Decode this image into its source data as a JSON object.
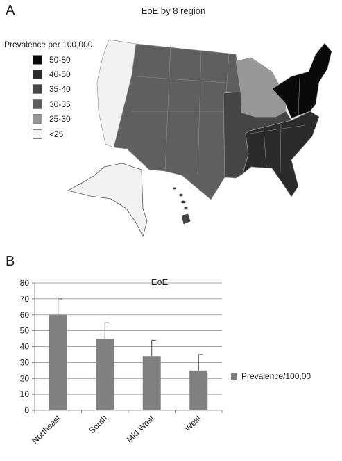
{
  "panel_a": {
    "letter": "A",
    "title": "EoE by 8 region",
    "legend_title": "Prevalence per 100,000",
    "legend": [
      {
        "label": "50-80",
        "color": "#0a0a0a"
      },
      {
        "label": "40-50",
        "color": "#2b2b2b"
      },
      {
        "label": "35-40",
        "color": "#454545"
      },
      {
        "label": "30-35",
        "color": "#5f5f5f"
      },
      {
        "label": "25-30",
        "color": "#979797"
      },
      {
        "label": "<25",
        "color": "#f2f2f2"
      }
    ]
  },
  "panel_b": {
    "letter": "B",
    "series_legend_label": "Prevalence/100,00"
  },
  "chart_data": {
    "type": "bar",
    "title": "EoE",
    "categories": [
      "Northeast",
      "South",
      "Mid West",
      "West"
    ],
    "series": [
      {
        "name": "Prevalence/100,00",
        "values": [
          60,
          45,
          34,
          25
        ],
        "error": [
          10,
          10,
          10,
          10
        ],
        "color": "#808080"
      }
    ],
    "ylim": [
      0,
      80
    ],
    "yticks": [
      0,
      10,
      20,
      30,
      40,
      50,
      60,
      70,
      80
    ],
    "grid": true,
    "legend_position": "right"
  }
}
